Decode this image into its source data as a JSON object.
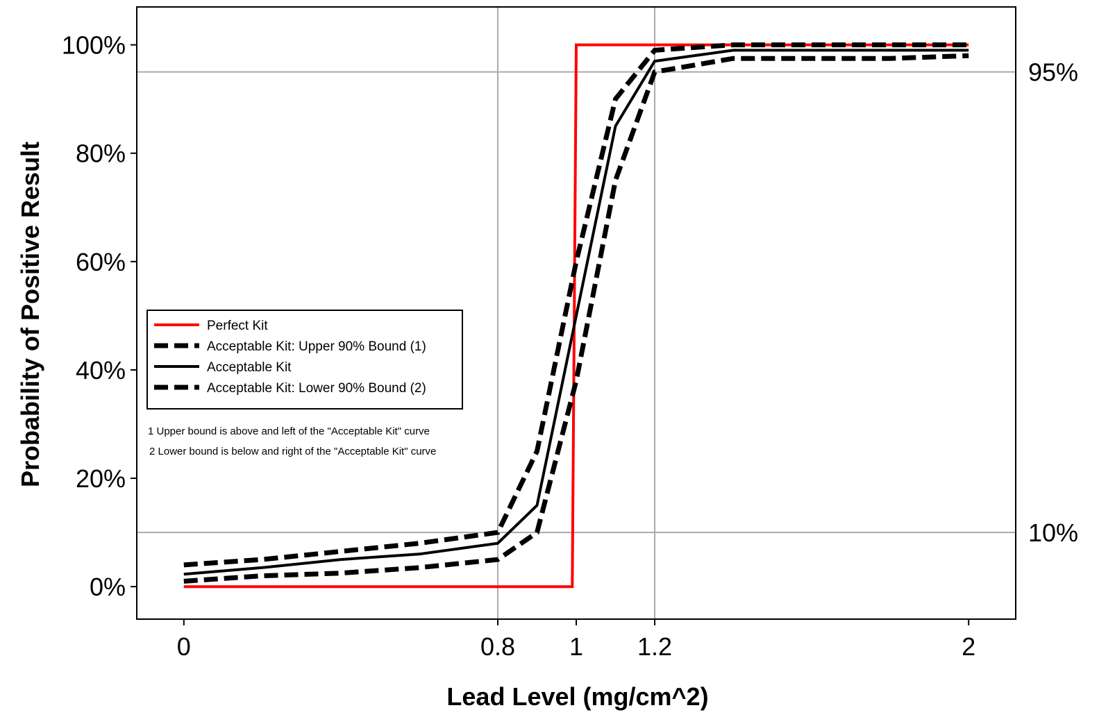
{
  "chart_data": {
    "type": "line",
    "title": "",
    "xlabel": "Lead Level (mg/cm^2)",
    "ylabel": "Probability of Positive Result",
    "xlim": [
      -0.12,
      2.12
    ],
    "ylim": [
      -6,
      107
    ],
    "x_ticks": [
      {
        "value": 0,
        "label": "0"
      },
      {
        "value": 0.8,
        "label": "0.8"
      },
      {
        "value": 1,
        "label": "1"
      },
      {
        "value": 1.2,
        "label": "1.2"
      },
      {
        "value": 2,
        "label": "2"
      }
    ],
    "y_ticks": [
      {
        "value": 0,
        "label": "0%"
      },
      {
        "value": 20,
        "label": "20%"
      },
      {
        "value": 40,
        "label": "40%"
      },
      {
        "value": 60,
        "label": "60%"
      },
      {
        "value": 80,
        "label": "80%"
      },
      {
        "value": 100,
        "label": "100%"
      }
    ],
    "vertical_gridlines_at": [
      0.8,
      1.2
    ],
    "horizontal_reference_lines": [
      {
        "value": 95,
        "label": "95%"
      },
      {
        "value": 10,
        "label": "10%"
      }
    ],
    "series": [
      {
        "name": "Perfect Kit",
        "color": "#ff0000",
        "style": "solid",
        "x": [
          0,
          0.99,
          1.0,
          2.0
        ],
        "y": [
          0,
          0,
          100,
          100
        ]
      },
      {
        "name": "Acceptable Kit: Upper 90% Bound (1)",
        "color": "#000000",
        "style": "dashed",
        "x": [
          0,
          0.2,
          0.4,
          0.6,
          0.8,
          0.9,
          1.0,
          1.1,
          1.2,
          1.4,
          1.6,
          1.8,
          2.0
        ],
        "y": [
          4,
          5,
          6.5,
          8,
          10,
          25,
          60,
          90,
          99,
          100,
          100,
          100,
          100
        ]
      },
      {
        "name": "Acceptable Kit",
        "color": "#000000",
        "style": "solid",
        "x": [
          0,
          0.2,
          0.4,
          0.6,
          0.8,
          0.9,
          1.0,
          1.1,
          1.2,
          1.4,
          1.6,
          1.8,
          2.0
        ],
        "y": [
          2.3,
          3.5,
          5,
          6,
          8,
          15,
          50,
          85,
          97,
          99,
          99,
          99,
          99
        ]
      },
      {
        "name": "Acceptable Kit: Lower 90% Bound (2)",
        "color": "#000000",
        "style": "dashed",
        "x": [
          0,
          0.2,
          0.4,
          0.6,
          0.8,
          0.9,
          1.0,
          1.1,
          1.2,
          1.4,
          1.6,
          1.8,
          2.0
        ],
        "y": [
          1,
          2,
          2.5,
          3.5,
          5,
          10,
          38,
          75,
          95,
          97.5,
          97.5,
          97.5,
          98
        ]
      }
    ],
    "legend": {
      "position": "middle-left",
      "entries": [
        "Perfect Kit",
        "Acceptable Kit: Upper 90% Bound (1)",
        "Acceptable Kit",
        "Acceptable Kit: Lower 90% Bound (2)"
      ]
    },
    "notes": [
      "1 Upper bound is above and left of the \"Acceptable Kit\" curve",
      "2 Lower bound is below and right of the \"Acceptable Kit\" curve"
    ]
  }
}
